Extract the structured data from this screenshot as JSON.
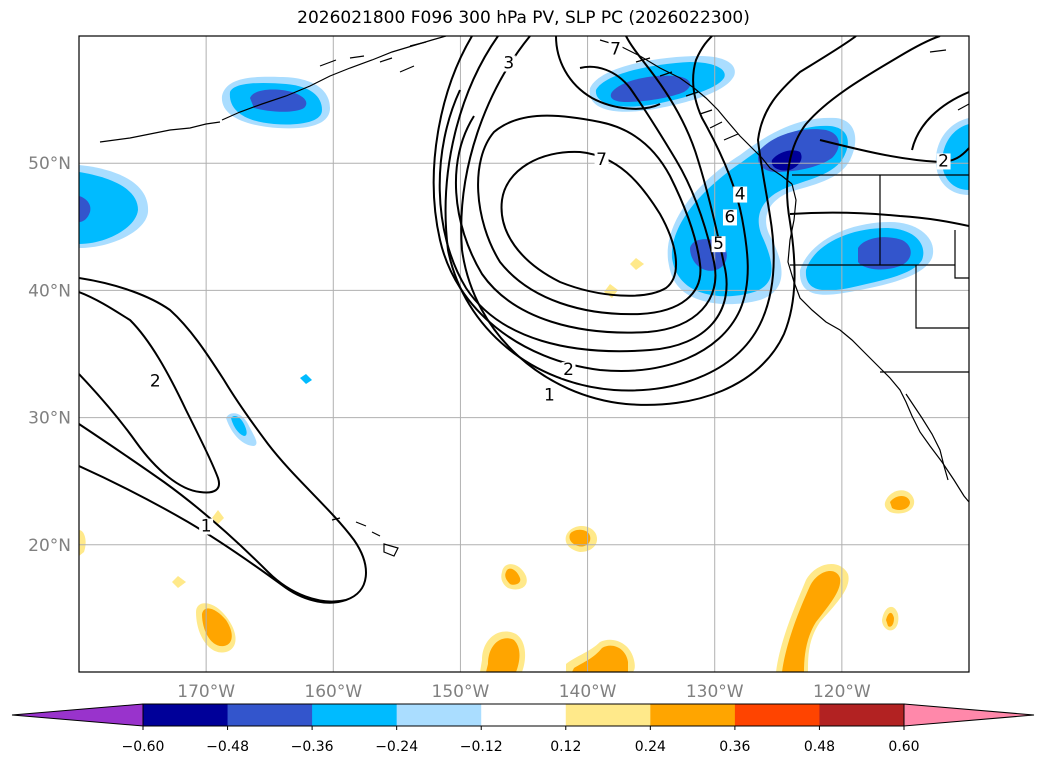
{
  "chart_data": {
    "type": "contour-map",
    "title": "2026021800 F096 300 hPa PV, SLP PC (2026022300)",
    "lat_ticks": [
      20,
      30,
      40,
      50
    ],
    "lat_labels": [
      "20°N",
      "30°N",
      "40°N",
      "50°N"
    ],
    "lon_ticks": [
      -170,
      -160,
      -150,
      -140,
      -130,
      -120
    ],
    "lon_labels": [
      "170°W",
      "160°W",
      "150°W",
      "140°W",
      "130°W",
      "120°W"
    ],
    "lon_range": [
      -180,
      -110
    ],
    "lat_range": [
      10,
      60
    ],
    "colorbar": {
      "levels": [
        -0.6,
        -0.48,
        -0.36,
        -0.24,
        -0.12,
        0.12,
        0.24,
        0.36,
        0.48,
        0.6
      ],
      "tick_labels": [
        "−0.60",
        "−0.48",
        "−0.36",
        "−0.24",
        "−0.12",
        "0.12",
        "0.24",
        "0.36",
        "0.48",
        "0.60"
      ],
      "colors": [
        "#9933cc",
        "#000099",
        "#3355cc",
        "#00bbff",
        "#aaddff",
        "#ffffff",
        "#ffe98a",
        "#ffa500",
        "#ff4400",
        "#b22222",
        "#ff88aa"
      ]
    },
    "contour_labels": [
      {
        "text": "1",
        "lon": -143,
        "lat": 31.5
      },
      {
        "text": "2",
        "lon": -141.5,
        "lat": 33.5
      },
      {
        "text": "3",
        "lon": -146.2,
        "lat": 57.6
      },
      {
        "text": "4",
        "lon": -128,
        "lat": 47.3
      },
      {
        "text": "5",
        "lon": -129.7,
        "lat": 43.4
      },
      {
        "text": "6",
        "lon": -128.8,
        "lat": 45.5
      },
      {
        "text": "7",
        "lon": -138.9,
        "lat": 50
      },
      {
        "text": "7",
        "lon": -137.8,
        "lat": 58.7
      },
      {
        "text": "2",
        "lon": -174,
        "lat": 32.6
      },
      {
        "text": "1",
        "lon": -170,
        "lat": 21.2
      },
      {
        "text": "2",
        "lon": -112,
        "lat": 49.9
      }
    ]
  },
  "colors": {
    "grid": "#b0b0b0",
    "contour": "#000000",
    "coast": "#000000",
    "pv_neg_1": "#aaddff",
    "pv_neg_2": "#00bbff",
    "pv_neg_3": "#3355cc",
    "pv_neg_4": "#000099",
    "pv_pos_1": "#ffe98a",
    "pv_pos_2": "#ffa500"
  }
}
